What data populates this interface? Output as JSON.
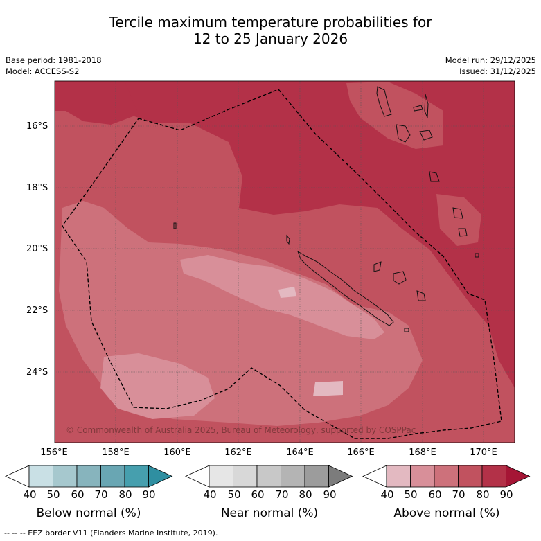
{
  "title": {
    "line1": "Tercile maximum temperature probabilities for",
    "line2": "12 to 25 January 2026"
  },
  "meta": {
    "base_period": "Base period: 1981-2018",
    "model": "Model: ACCESS-S2",
    "model_run": "Model run: 29/12/2025",
    "issued": "Issued: 31/12/2025"
  },
  "map": {
    "latitude_labels": [
      "16°S",
      "18°S",
      "20°S",
      "22°S",
      "24°S"
    ],
    "longitude_labels": [
      "156°E",
      "158°E",
      "160°E",
      "162°E",
      "164°E",
      "166°E",
      "168°E",
      "170°E"
    ],
    "copyright": "© Commonwealth of Australia 2025, Bureau of Meteorology, supported by COSPPac"
  },
  "colorbars": [
    {
      "title": "Below normal (%)",
      "ticks": [
        "40",
        "50",
        "60",
        "70",
        "80",
        "90"
      ],
      "colors": [
        "#ffffff",
        "#c9e0e5",
        "#a6c8ce",
        "#87b4bd",
        "#69a6b3",
        "#469fae",
        "#2f8fa1"
      ]
    },
    {
      "title": "Near normal (%)",
      "ticks": [
        "40",
        "50",
        "60",
        "70",
        "80",
        "90"
      ],
      "colors": [
        "#ffffff",
        "#e6e6e6",
        "#d8d8d8",
        "#c8c8c8",
        "#b4b4b4",
        "#9c9c9c",
        "#7c7c7c"
      ]
    },
    {
      "title": "Above normal (%)",
      "ticks": [
        "40",
        "50",
        "60",
        "70",
        "80",
        "90"
      ],
      "colors": [
        "#ffffff",
        "#e3b9c1",
        "#d88f99",
        "#cd717b",
        "#c1525f",
        "#b33148",
        "#a51535"
      ]
    }
  ],
  "footer": "--  --  -- EEZ border V11 (Flanders Marine Institute, 2019)."
}
